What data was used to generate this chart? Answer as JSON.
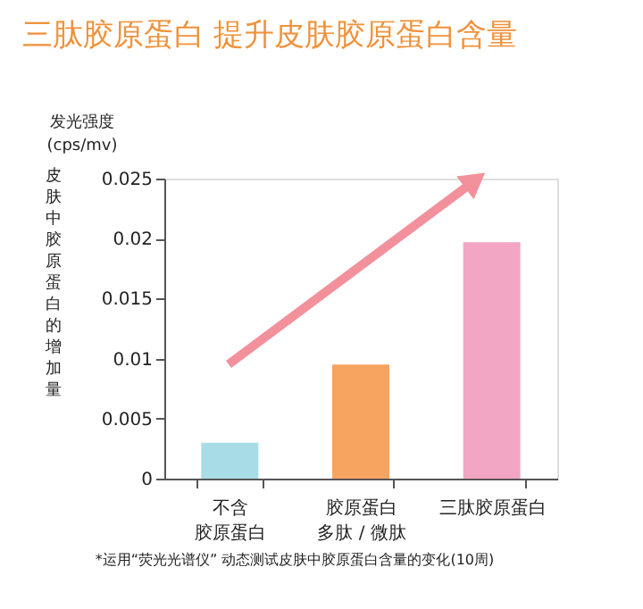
{
  "chart_data": {
    "type": "bar",
    "title": "三肽胶原蛋白  提升皮肤胶原蛋白含量",
    "ylabel": "发光强度\n(cps/mv)",
    "categories": [
      "不含胶原蛋白",
      "胶原蛋白多肽 / 微肽",
      "三肽胶原蛋白"
    ],
    "values": [
      0.003,
      0.0095,
      0.0197
    ],
    "colors": [
      "#a8dde6",
      "#f7a460",
      "#f2a6c4"
    ],
    "ylim": [
      0,
      0.025
    ],
    "yticks": [
      0,
      0.005,
      0.01,
      0.015,
      0.02,
      0.025
    ],
    "grid": false,
    "annotations": [
      "皮肤中胶原蛋白的增加量",
      "*运用“荧光光谱仪” 动态测试皮肤中胶原蛋白含量的变化(10周)"
    ]
  }
}
